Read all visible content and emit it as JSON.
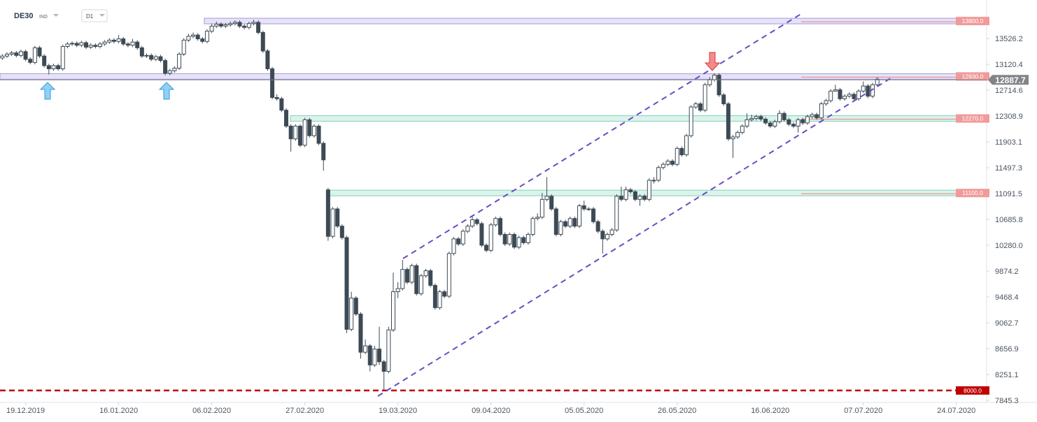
{
  "chart_data": {
    "type": "candlestick",
    "title": "DE30",
    "subtitle": "IND",
    "timeframe": "D1",
    "up_color": "#ffffff",
    "down_color": "#3d4a55",
    "xlim": [
      -0.5,
      211.5
    ],
    "xticks": [
      {
        "value": 5,
        "label": "19.12.2019"
      },
      {
        "value": 25,
        "label": "16.01.2020"
      },
      {
        "value": 45,
        "label": "06.02.2020"
      },
      {
        "value": 65,
        "label": "27.02.2020"
      },
      {
        "value": 85,
        "label": "19.03.2020"
      },
      {
        "value": 105,
        "label": "09.04.2020"
      },
      {
        "value": 125,
        "label": "05.05.2020"
      },
      {
        "value": 145,
        "label": "26.05.2020"
      },
      {
        "value": 165,
        "label": "16.06.2020"
      },
      {
        "value": 185,
        "label": "07.07.2020"
      },
      {
        "value": 205,
        "label": "24.07.2020"
      }
    ],
    "ylim": [
      7812,
      14130
    ],
    "yticks": [
      13526.2,
      13120.4,
      12714.6,
      12308.9,
      11903.1,
      11497.3,
      11091.5,
      10685.8,
      {
        "value": 10280,
        "label": "10280.0"
      },
      9874.2,
      9468.4,
      9062.7,
      8656.9,
      8251.1,
      7845.3
    ],
    "levels": [
      {
        "value": 13800,
        "label": "13800.0",
        "color": "#f19a9a"
      },
      {
        "value": 12930,
        "label": "12930.0",
        "color": "#f19a9a"
      },
      {
        "value": 12270,
        "label": "12270.0",
        "color": "#f19a9a"
      },
      {
        "value": 11100,
        "label": "11100.0",
        "color": "#f19a9a"
      },
      {
        "value": 8000,
        "label": "8000.0",
        "color": "#c00000"
      }
    ],
    "last_price": 12887.7,
    "ohlc": [
      [
        13220,
        13280,
        13190,
        13250
      ],
      [
        13250,
        13310,
        13220,
        13280
      ],
      [
        13280,
        13330,
        13250,
        13300
      ],
      [
        13300,
        13330,
        13230,
        13260
      ],
      [
        13260,
        13350,
        13230,
        13320
      ],
      [
        13320,
        13350,
        13170,
        13200
      ],
      [
        13200,
        13230,
        13120,
        13150
      ],
      [
        13150,
        13410,
        13120,
        13380
      ],
      [
        13380,
        13410,
        13220,
        13250
      ],
      [
        13250,
        13280,
        13070,
        13100
      ],
      [
        13100,
        13130,
        12960,
        13050
      ],
      [
        13050,
        13130,
        13020,
        13100
      ],
      [
        13100,
        13130,
        13020,
        13050
      ],
      [
        13050,
        13430,
        13020,
        13400
      ],
      [
        13400,
        13470,
        13370,
        13440
      ],
      [
        13440,
        13480,
        13410,
        13450
      ],
      [
        13450,
        13480,
        13390,
        13420
      ],
      [
        13420,
        13490,
        13390,
        13460
      ],
      [
        13460,
        13490,
        13360,
        13390
      ],
      [
        13390,
        13450,
        13360,
        13420
      ],
      [
        13420,
        13450,
        13370,
        13400
      ],
      [
        13400,
        13470,
        13370,
        13440
      ],
      [
        13440,
        13500,
        13410,
        13470
      ],
      [
        13470,
        13530,
        13440,
        13500
      ],
      [
        13500,
        13530,
        13450,
        13480
      ],
      [
        13480,
        13580,
        13450,
        13520
      ],
      [
        13520,
        13550,
        13410,
        13440
      ],
      [
        13440,
        13470,
        13390,
        13420
      ],
      [
        13420,
        13520,
        13390,
        13470
      ],
      [
        13470,
        13500,
        13350,
        13380
      ],
      [
        13380,
        13410,
        13220,
        13250
      ],
      [
        13250,
        13290,
        13220,
        13260
      ],
      [
        13260,
        13290,
        13170,
        13200
      ],
      [
        13200,
        13270,
        13170,
        13240
      ],
      [
        13240,
        13270,
        13150,
        13180
      ],
      [
        13180,
        13210,
        12950,
        12980
      ],
      [
        12980,
        13050,
        12950,
        13020
      ],
      [
        13020,
        13090,
        12990,
        13060
      ],
      [
        13060,
        13310,
        13030,
        13280
      ],
      [
        13280,
        13530,
        13250,
        13500
      ],
      [
        13500,
        13600,
        13470,
        13560
      ],
      [
        13560,
        13620,
        13530,
        13580
      ],
      [
        13580,
        13610,
        13490,
        13520
      ],
      [
        13520,
        13550,
        13450,
        13480
      ],
      [
        13480,
        13670,
        13450,
        13640
      ],
      [
        13640,
        13760,
        13610,
        13720
      ],
      [
        13720,
        13790,
        13690,
        13750
      ],
      [
        13750,
        13780,
        13690,
        13720
      ],
      [
        13720,
        13770,
        13690,
        13740
      ],
      [
        13740,
        13790,
        13710,
        13760
      ],
      [
        13760,
        13810,
        13730,
        13780
      ],
      [
        13780,
        13810,
        13690,
        13720
      ],
      [
        13720,
        13750,
        13670,
        13700
      ],
      [
        13700,
        13790,
        13670,
        13760
      ],
      [
        13760,
        13820,
        13730,
        13780
      ],
      [
        13780,
        13810,
        13590,
        13620
      ],
      [
        13620,
        13650,
        13300,
        13330
      ],
      [
        13330,
        13360,
        13020,
        13050
      ],
      [
        13050,
        13080,
        12570,
        12600
      ],
      [
        12600,
        12650,
        12550,
        12580
      ],
      [
        12580,
        12610,
        12370,
        12400
      ],
      [
        12400,
        12430,
        12120,
        12150
      ],
      [
        12150,
        12180,
        11750,
        11950
      ],
      [
        11950,
        12180,
        11920,
        12150
      ],
      [
        12150,
        12180,
        11820,
        11850
      ],
      [
        11850,
        12280,
        11820,
        12250
      ],
      [
        12250,
        12280,
        11970,
        12000
      ],
      [
        12000,
        12180,
        11970,
        12150
      ],
      [
        12150,
        12180,
        11850,
        11880
      ],
      [
        11880,
        11910,
        11450,
        11620
      ],
      [
        11150,
        11180,
        10350,
        10420
      ],
      [
        10420,
        10880,
        10390,
        10850
      ],
      [
        10850,
        10880,
        10550,
        10580
      ],
      [
        10580,
        10610,
        10370,
        10400
      ],
      [
        10400,
        10430,
        8900,
        8960
      ],
      [
        8960,
        9550,
        8930,
        9450
      ],
      [
        9450,
        9480,
        9170,
        9200
      ],
      [
        9200,
        9230,
        8500,
        8600
      ],
      [
        8600,
        8800,
        8570,
        8700
      ],
      [
        8700,
        8730,
        8300,
        8400
      ],
      [
        8400,
        8700,
        8370,
        8650
      ],
      [
        8650,
        9000,
        8400,
        8450
      ],
      [
        8450,
        8480,
        8000,
        8300
      ],
      [
        8300,
        9000,
        8270,
        8950
      ],
      [
        8950,
        9850,
        8920,
        9550
      ],
      [
        9550,
        9700,
        9450,
        9600
      ],
      [
        9600,
        10050,
        9570,
        9900
      ],
      [
        9900,
        9930,
        9670,
        9700
      ],
      [
        9700,
        9990,
        9670,
        9960
      ],
      [
        9960,
        9990,
        9490,
        9520
      ],
      [
        9520,
        9830,
        9490,
        9800
      ],
      [
        9800,
        9910,
        9770,
        9880
      ],
      [
        9880,
        9910,
        9620,
        9650
      ],
      [
        9650,
        9680,
        9270,
        9300
      ],
      [
        9300,
        9580,
        9270,
        9550
      ],
      [
        9550,
        9580,
        9450,
        9480
      ],
      [
        9480,
        10180,
        9450,
        10150
      ],
      [
        10150,
        10410,
        10120,
        10380
      ],
      [
        10380,
        10410,
        10270,
        10300
      ],
      [
        10300,
        10530,
        10270,
        10500
      ],
      [
        10500,
        10610,
        10470,
        10580
      ],
      [
        10580,
        10750,
        10550,
        10680
      ],
      [
        10680,
        10710,
        10590,
        10620
      ],
      [
        10620,
        10650,
        10250,
        10280
      ],
      [
        10280,
        10310,
        10170,
        10200
      ],
      [
        10200,
        10630,
        10170,
        10600
      ],
      [
        10600,
        10730,
        10570,
        10700
      ],
      [
        10700,
        10730,
        10420,
        10450
      ],
      [
        10450,
        10480,
        10270,
        10300
      ],
      [
        10300,
        10480,
        10270,
        10450
      ],
      [
        10450,
        10480,
        10220,
        10250
      ],
      [
        10250,
        10430,
        10220,
        10400
      ],
      [
        10400,
        10430,
        10290,
        10320
      ],
      [
        10320,
        10480,
        10290,
        10450
      ],
      [
        10450,
        10730,
        10420,
        10700
      ],
      [
        10700,
        10780,
        10670,
        10720
      ],
      [
        10720,
        11100,
        10690,
        11000
      ],
      [
        11000,
        11350,
        10970,
        11050
      ],
      [
        11050,
        11080,
        10820,
        10850
      ],
      [
        10850,
        10880,
        10420,
        10450
      ],
      [
        10450,
        10680,
        10420,
        10650
      ],
      [
        10650,
        10680,
        10550,
        10580
      ],
      [
        10580,
        10730,
        10550,
        10700
      ],
      [
        10700,
        10730,
        10550,
        10580
      ],
      [
        10580,
        10930,
        10550,
        10900
      ],
      [
        10900,
        10980,
        10820,
        10850
      ],
      [
        10850,
        10880,
        10820,
        10850
      ],
      [
        10850,
        10880,
        10620,
        10650
      ],
      [
        10650,
        10680,
        10470,
        10500
      ],
      [
        10500,
        10530,
        10150,
        10380
      ],
      [
        10380,
        10480,
        10350,
        10450
      ],
      [
        10450,
        10550,
        10420,
        10520
      ],
      [
        10520,
        11080,
        10490,
        11050
      ],
      [
        11050,
        11200,
        10970,
        11000
      ],
      [
        11000,
        11200,
        10970,
        11150
      ],
      [
        11150,
        11180,
        11090,
        11120
      ],
      [
        11120,
        11150,
        10970,
        11000
      ],
      [
        11000,
        11080,
        10900,
        11050
      ],
      [
        11050,
        11080,
        10970,
        11000
      ],
      [
        11000,
        11330,
        10970,
        11300
      ],
      [
        11300,
        11350,
        11250,
        11300
      ],
      [
        11300,
        11530,
        11270,
        11500
      ],
      [
        11500,
        11580,
        11470,
        11550
      ],
      [
        11550,
        11630,
        11520,
        11600
      ],
      [
        11600,
        11630,
        11520,
        11550
      ],
      [
        11550,
        11830,
        11520,
        11800
      ],
      [
        11800,
        11830,
        11670,
        11700
      ],
      [
        11700,
        12030,
        11670,
        12000
      ],
      [
        12000,
        12480,
        11970,
        12450
      ],
      [
        12450,
        12530,
        12420,
        12500
      ],
      [
        12500,
        12530,
        12370,
        12400
      ],
      [
        12400,
        12830,
        12370,
        12800
      ],
      [
        12800,
        12920,
        12770,
        12880
      ],
      [
        12880,
        12980,
        12850,
        12950
      ],
      [
        12950,
        12980,
        12610,
        12640
      ],
      [
        12640,
        12670,
        12470,
        12500
      ],
      [
        12500,
        12530,
        11920,
        11950
      ],
      [
        11950,
        12010,
        11650,
        11980
      ],
      [
        11980,
        12080,
        11950,
        12050
      ],
      [
        12050,
        12180,
        12020,
        12150
      ],
      [
        12150,
        12350,
        12120,
        12250
      ],
      [
        12250,
        12330,
        12220,
        12270
      ],
      [
        12270,
        12330,
        12240,
        12300
      ],
      [
        12300,
        12330,
        12230,
        12260
      ],
      [
        12260,
        12290,
        12170,
        12200
      ],
      [
        12200,
        12230,
        12120,
        12150
      ],
      [
        12150,
        12250,
        12120,
        12220
      ],
      [
        12220,
        12400,
        12190,
        12350
      ],
      [
        12350,
        12380,
        12220,
        12250
      ],
      [
        12250,
        12280,
        12150,
        12180
      ],
      [
        12180,
        12210,
        12120,
        12150
      ],
      [
        12150,
        12280,
        12050,
        12250
      ],
      [
        12250,
        12280,
        12170,
        12200
      ],
      [
        12200,
        12330,
        12170,
        12300
      ],
      [
        12300,
        12360,
        12270,
        12330
      ],
      [
        12330,
        12360,
        12250,
        12280
      ],
      [
        12280,
        12530,
        12250,
        12500
      ],
      [
        12500,
        12580,
        12470,
        12550
      ],
      [
        12550,
        12730,
        12520,
        12700
      ],
      [
        12700,
        12800,
        12690,
        12720
      ],
      [
        12720,
        12750,
        12550,
        12580
      ],
      [
        12580,
        12650,
        12550,
        12620
      ],
      [
        12620,
        12680,
        12590,
        12650
      ],
      [
        12650,
        12680,
        12550,
        12580
      ],
      [
        12580,
        12730,
        12550,
        12700
      ],
      [
        12700,
        12850,
        12670,
        12780
      ],
      [
        12780,
        12810,
        12590,
        12620
      ],
      [
        12620,
        12830,
        12590,
        12800
      ],
      [
        12800,
        12920,
        12770,
        12887.7
      ]
    ]
  }
}
